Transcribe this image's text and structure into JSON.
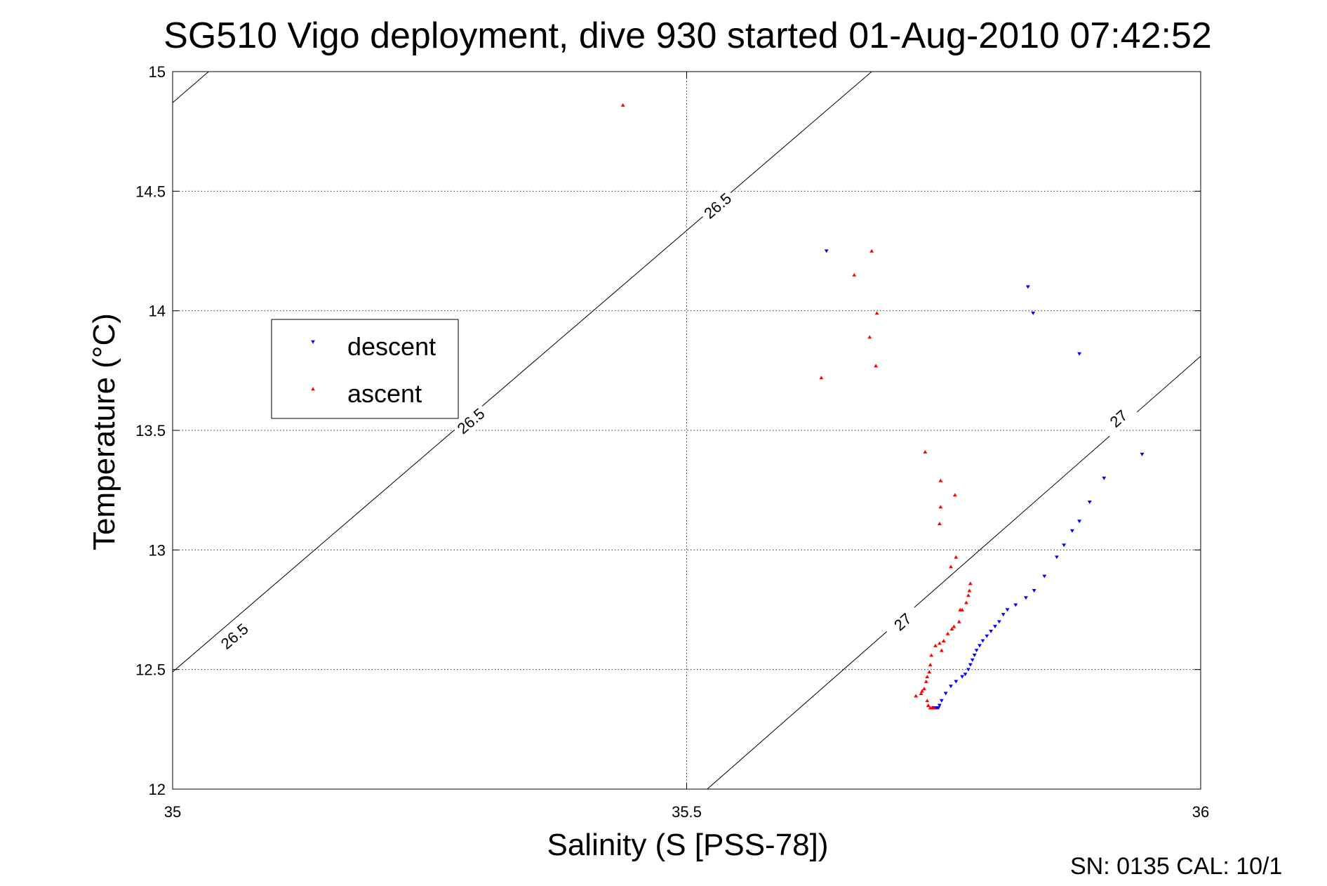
{
  "chart_data": {
    "type": "scatter",
    "title": "SG510 Vigo deployment, dive 930 started 01-Aug-2010 07:42:52",
    "xlabel": "Salinity (S [PSS-78])",
    "ylabel": "Temperature (°C)",
    "xlim": [
      35,
      36
    ],
    "ylim": [
      12,
      15
    ],
    "xticks": [
      35,
      35.5,
      36
    ],
    "xtick_labels": [
      "35",
      "35.5",
      "36"
    ],
    "yticks": [
      12,
      12.5,
      13,
      13.5,
      14,
      14.5,
      15
    ],
    "ytick_labels": [
      "12",
      "12.5",
      "13",
      "13.5",
      "14",
      "14.5",
      "15"
    ],
    "grid": true,
    "legend_position": "left-middle",
    "footer": "SN: 0135  CAL: 10/1",
    "series": [
      {
        "name": "descent",
        "color": "#0000ff",
        "marker": "triangle-down",
        "x": [
          35.636,
          35.832,
          35.837,
          35.882,
          35.943,
          35.906,
          35.892,
          35.882,
          35.875,
          35.867,
          35.86,
          35.848,
          35.838,
          35.83,
          35.82,
          35.812,
          35.808,
          35.804,
          35.8,
          35.796,
          35.792,
          35.788,
          35.785,
          35.782,
          35.78,
          35.778,
          35.776,
          35.774,
          35.771,
          35.768,
          35.762,
          35.757,
          35.752,
          35.748,
          35.746,
          35.745,
          35.744,
          35.743,
          35.742,
          35.741,
          35.74
        ],
        "y": [
          14.25,
          14.1,
          13.99,
          13.82,
          13.4,
          13.3,
          13.2,
          13.12,
          13.08,
          13.02,
          12.97,
          12.89,
          12.83,
          12.8,
          12.77,
          12.75,
          12.73,
          12.7,
          12.68,
          12.66,
          12.64,
          12.62,
          12.6,
          12.58,
          12.56,
          12.54,
          12.52,
          12.5,
          12.48,
          12.47,
          12.45,
          12.43,
          12.4,
          12.37,
          12.35,
          12.34,
          12.34,
          12.34,
          12.34,
          12.34,
          12.34
        ]
      },
      {
        "name": "ascent",
        "color": "#ff0000",
        "marker": "triangle-up",
        "x": [
          35.438,
          35.68,
          35.663,
          35.685,
          35.678,
          35.631,
          35.684,
          35.732,
          35.747,
          35.761,
          35.747,
          35.746,
          35.762,
          35.757,
          35.776,
          35.775,
          35.774,
          35.772,
          35.768,
          35.766,
          35.765,
          35.76,
          35.758,
          35.754,
          35.75,
          35.746,
          35.742,
          35.748,
          35.738,
          35.737,
          35.736,
          35.734,
          35.733,
          35.731,
          35.729,
          35.728,
          35.723,
          35.734,
          35.735,
          35.737,
          35.739,
          35.741
        ],
        "y": [
          14.86,
          14.25,
          14.15,
          13.99,
          13.89,
          13.72,
          13.77,
          13.41,
          13.29,
          13.23,
          13.18,
          13.11,
          12.97,
          12.93,
          12.86,
          12.83,
          12.81,
          12.78,
          12.75,
          12.75,
          12.7,
          12.68,
          12.67,
          12.65,
          12.62,
          12.61,
          12.6,
          12.58,
          12.56,
          12.52,
          12.49,
          12.47,
          12.45,
          12.42,
          12.41,
          12.4,
          12.39,
          12.37,
          12.35,
          12.34,
          12.34,
          12.34
        ]
      }
    ],
    "contours": [
      {
        "label": "26.5",
        "points": [
          [
            35.0,
            12.49
          ],
          [
            35.68,
            15.0
          ]
        ],
        "label_positions": [
          [
            35.06,
            12.64
          ],
          [
            35.29,
            13.54
          ],
          [
            35.53,
            14.44
          ]
        ]
      },
      {
        "label": "27",
        "points": [
          [
            35.52,
            12.0
          ],
          [
            36.0,
            13.81
          ]
        ],
        "label_positions": [
          [
            35.71,
            12.7
          ],
          [
            35.92,
            13.55
          ]
        ]
      },
      {
        "label": "",
        "points": [
          [
            35.0,
            14.87
          ],
          [
            35.035,
            15.0
          ]
        ],
        "label_positions": []
      }
    ]
  }
}
